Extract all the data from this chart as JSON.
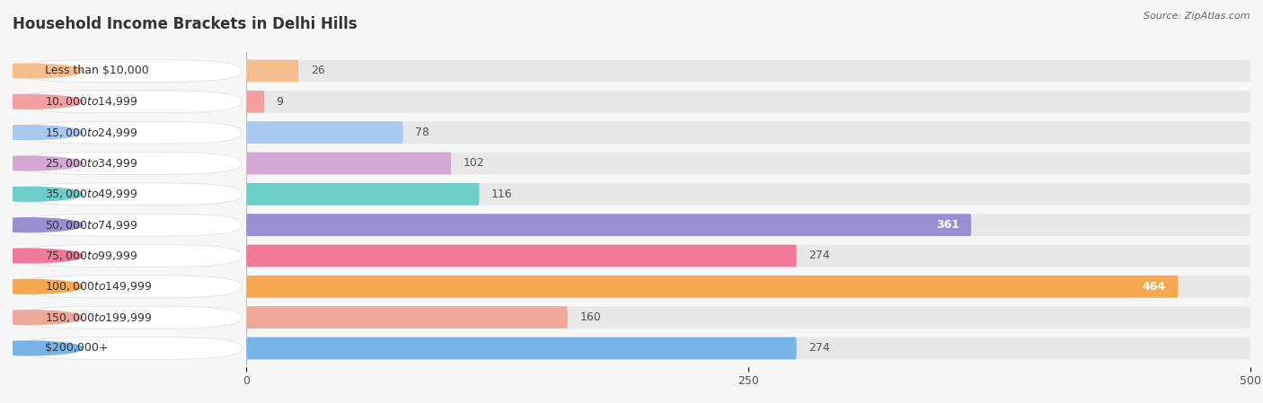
{
  "title": "Household Income Brackets in Delhi Hills",
  "source": "Source: ZipAtlas.com",
  "categories": [
    "Less than $10,000",
    "$10,000 to $14,999",
    "$15,000 to $24,999",
    "$25,000 to $34,999",
    "$35,000 to $49,999",
    "$50,000 to $74,999",
    "$75,000 to $99,999",
    "$100,000 to $149,999",
    "$150,000 to $199,999",
    "$200,000+"
  ],
  "values": [
    26,
    9,
    78,
    102,
    116,
    361,
    274,
    464,
    160,
    274
  ],
  "bar_colors": [
    "#f5be8e",
    "#f5a0a0",
    "#a8c8f0",
    "#d4a8d4",
    "#6dcdc8",
    "#9b8fd4",
    "#f07899",
    "#f5a850",
    "#f0a898",
    "#78b4e8"
  ],
  "xlim": [
    0,
    500
  ],
  "xticks": [
    0,
    250,
    500
  ],
  "background_color": "#f7f7f7",
  "bar_background_color": "#e8e8e8",
  "row_background_color": "#efefef",
  "title_fontsize": 12,
  "label_fontsize": 9,
  "value_fontsize": 9,
  "value_threshold_inside": 320
}
